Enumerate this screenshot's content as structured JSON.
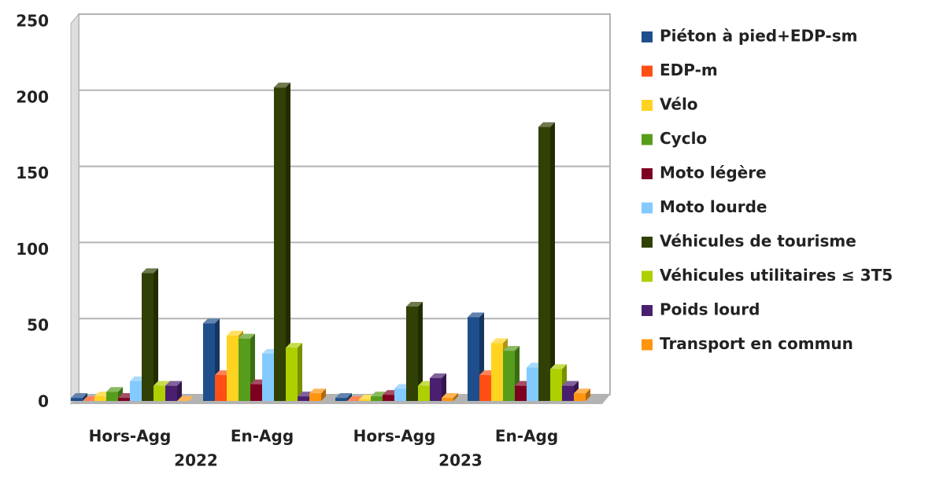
{
  "chart_data": {
    "type": "bar",
    "categories": [
      "Hors-Agg",
      "En-Agg",
      "Hors-Agg",
      "En-Agg"
    ],
    "category_groups": [
      "2022",
      "2023"
    ],
    "ylim": [
      0,
      250
    ],
    "yticks": [
      0,
      50,
      100,
      150,
      200,
      250
    ],
    "grid": true,
    "legend": "right",
    "series": [
      {
        "name": "Piéton à pied+EDP-sm",
        "color": "#1f4e8c",
        "values": [
          2,
          51,
          2,
          55
        ]
      },
      {
        "name": "EDP-m",
        "color": "#ff4f14",
        "values": [
          0,
          17,
          0,
          17
        ]
      },
      {
        "name": "Vélo",
        "color": "#ffd320",
        "values": [
          3,
          43,
          1,
          38
        ]
      },
      {
        "name": "Cyclo",
        "color": "#579d1c",
        "values": [
          6,
          41,
          3,
          33
        ]
      },
      {
        "name": "Moto légère",
        "color": "#7e0021",
        "values": [
          2,
          11,
          4,
          10
        ]
      },
      {
        "name": "Moto lourde",
        "color": "#83caff",
        "values": [
          13,
          31,
          8,
          22
        ]
      },
      {
        "name": "Véhicules de tourisme",
        "color": "#314004",
        "values": [
          84,
          206,
          62,
          180
        ]
      },
      {
        "name": "Véhicules utilitaires ≤ 3T5",
        "color": "#aecf00",
        "values": [
          10,
          35,
          10,
          21
        ]
      },
      {
        "name": "Poids lourd",
        "color": "#4b1f6f",
        "values": [
          10,
          3,
          15,
          10
        ]
      },
      {
        "name": "Transport en commun",
        "color": "#ff950e",
        "values": [
          0,
          5,
          2,
          5
        ]
      }
    ]
  }
}
